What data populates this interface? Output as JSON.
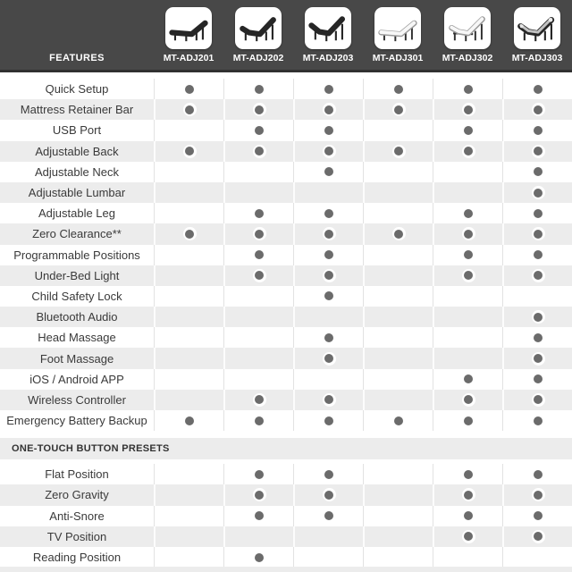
{
  "header": {
    "features_label": "FEATURES",
    "products": [
      {
        "model": "MT-ADJ201",
        "variant": "dark-flat",
        "icon": "adjustable-bed-dark-flat"
      },
      {
        "model": "MT-ADJ202",
        "variant": "dark-head",
        "icon": "adjustable-bed-dark-head-up"
      },
      {
        "model": "MT-ADJ203",
        "variant": "dark-headfoot",
        "icon": "adjustable-bed-dark-head-foot-up"
      },
      {
        "model": "MT-ADJ301",
        "variant": "light-flat",
        "icon": "adjustable-bed-light-flat"
      },
      {
        "model": "MT-ADJ302",
        "variant": "light-headfoot",
        "icon": "adjustable-bed-light-head-foot-up"
      },
      {
        "model": "MT-ADJ303",
        "variant": "mixed-headfoot",
        "icon": "adjustable-bed-mixed-head-foot-up"
      }
    ]
  },
  "table": {
    "sections": [
      {
        "title": "",
        "rows": [
          {
            "label": "Quick Setup",
            "dots": [
              1,
              1,
              1,
              1,
              1,
              1
            ]
          },
          {
            "label": "Mattress Retainer Bar",
            "dots": [
              1,
              1,
              1,
              1,
              1,
              1
            ]
          },
          {
            "label": "USB Port",
            "dots": [
              0,
              1,
              1,
              0,
              1,
              1
            ]
          },
          {
            "label": "Adjustable Back",
            "dots": [
              1,
              1,
              1,
              1,
              1,
              1
            ]
          },
          {
            "label": "Adjustable Neck",
            "dots": [
              0,
              0,
              1,
              0,
              0,
              1
            ]
          },
          {
            "label": "Adjustable Lumbar",
            "dots": [
              0,
              0,
              0,
              0,
              0,
              1
            ]
          },
          {
            "label": "Adjustable Leg",
            "dots": [
              0,
              1,
              1,
              0,
              1,
              1
            ]
          },
          {
            "label": "Zero Clearance**",
            "dots": [
              1,
              1,
              1,
              1,
              1,
              1
            ]
          },
          {
            "label": "Programmable Positions",
            "dots": [
              0,
              1,
              1,
              0,
              1,
              1
            ]
          },
          {
            "label": "Under-Bed Light",
            "dots": [
              0,
              1,
              1,
              0,
              1,
              1
            ]
          },
          {
            "label": "Child Safety Lock",
            "dots": [
              0,
              0,
              1,
              0,
              0,
              0
            ]
          },
          {
            "label": "Bluetooth Audio",
            "dots": [
              0,
              0,
              0,
              0,
              0,
              1
            ]
          },
          {
            "label": "Head Massage",
            "dots": [
              0,
              0,
              1,
              0,
              0,
              1
            ]
          },
          {
            "label": "Foot Massage",
            "dots": [
              0,
              0,
              1,
              0,
              0,
              1
            ]
          },
          {
            "label": "iOS / Android APP",
            "dots": [
              0,
              0,
              0,
              0,
              1,
              1
            ]
          },
          {
            "label": "Wireless Controller",
            "dots": [
              0,
              1,
              1,
              0,
              1,
              1
            ]
          },
          {
            "label": "Emergency Battery Backup",
            "dots": [
              1,
              1,
              1,
              1,
              1,
              1
            ]
          }
        ]
      },
      {
        "title": "ONE-TOUCH BUTTON PRESETS",
        "rows": [
          {
            "label": "Flat Position",
            "dots": [
              0,
              1,
              1,
              0,
              1,
              1
            ]
          },
          {
            "label": "Zero Gravity",
            "dots": [
              0,
              1,
              1,
              0,
              1,
              1
            ]
          },
          {
            "label": "Anti-Snore",
            "dots": [
              0,
              1,
              1,
              0,
              1,
              1
            ]
          },
          {
            "label": "TV Position",
            "dots": [
              0,
              0,
              0,
              0,
              1,
              1
            ]
          },
          {
            "label": "Reading Position",
            "dots": [
              0,
              1,
              0,
              0,
              0,
              0
            ]
          }
        ]
      }
    ]
  },
  "colors": {
    "header_bg": "#484848",
    "header_border": "#313131",
    "row_alt_bg": "#ececec",
    "dot": "#6b6b6b",
    "label_text": "#3a3a3a",
    "header_text": "#ffffff"
  }
}
